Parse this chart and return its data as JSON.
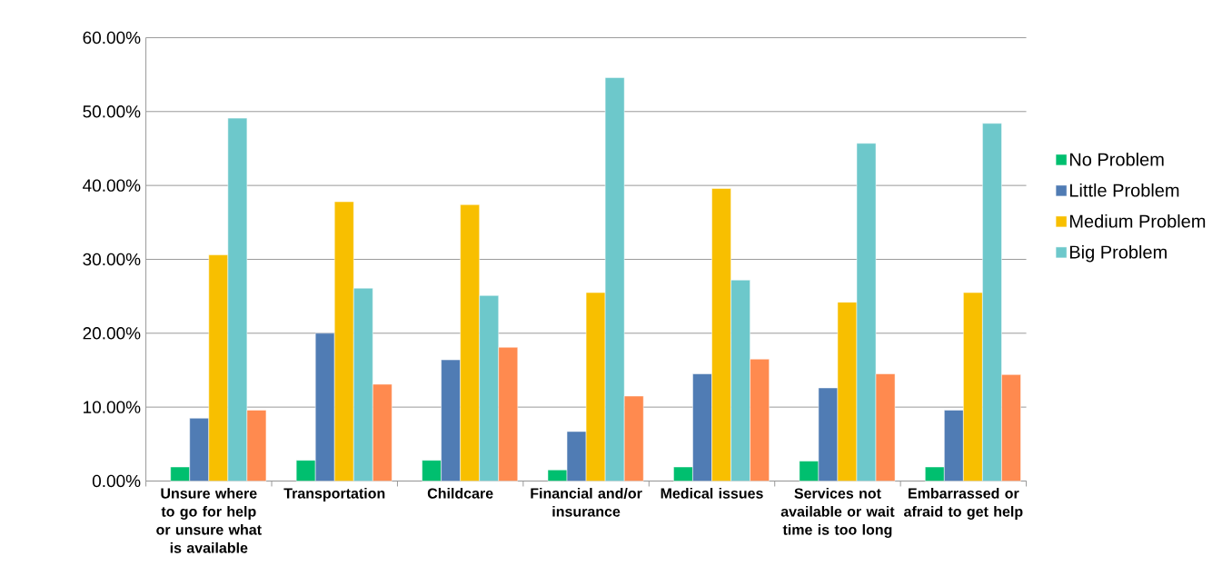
{
  "chart_data": {
    "type": "bar",
    "categories": [
      "Unsure where to go for help or unsure what is available",
      "Transportation",
      "Childcare",
      "Financial and/or insurance",
      "Medical issues",
      "Services not available or wait time is too long",
      "Embarrassed or afraid to get help"
    ],
    "series": [
      {
        "name": "No Problem",
        "color": "#00bf6f",
        "values": [
          1.9,
          2.8,
          2.8,
          1.5,
          1.9,
          2.7,
          1.9
        ]
      },
      {
        "name": "Little Problem",
        "color": "#507cb4",
        "values": [
          8.5,
          20.0,
          16.4,
          6.7,
          14.5,
          12.6,
          9.6
        ]
      },
      {
        "name": "Medium Problem",
        "color": "#f8bf00",
        "values": [
          30.6,
          37.8,
          37.4,
          25.5,
          39.6,
          24.2,
          25.5
        ]
      },
      {
        "name": "Big Problem",
        "color": "#6dc8cb",
        "values": [
          49.1,
          26.1,
          25.1,
          54.6,
          27.2,
          45.7,
          48.4
        ]
      },
      {
        "color": "#ff8a4f",
        "values": [
          9.6,
          13.1,
          18.1,
          11.5,
          16.5,
          14.5,
          14.4
        ]
      }
    ],
    "ylim": [
      0,
      60
    ],
    "yticks": [
      {
        "value": 0,
        "label": "0.00%"
      },
      {
        "value": 10,
        "label": "10.00%"
      },
      {
        "value": 20,
        "label": "20.00%"
      },
      {
        "value": 30,
        "label": "30.00%"
      },
      {
        "value": 40,
        "label": "40.00%"
      },
      {
        "value": 50,
        "label": "50.00%"
      },
      {
        "value": 60,
        "label": "60.00%"
      }
    ],
    "grid": "y",
    "legend": "right"
  }
}
